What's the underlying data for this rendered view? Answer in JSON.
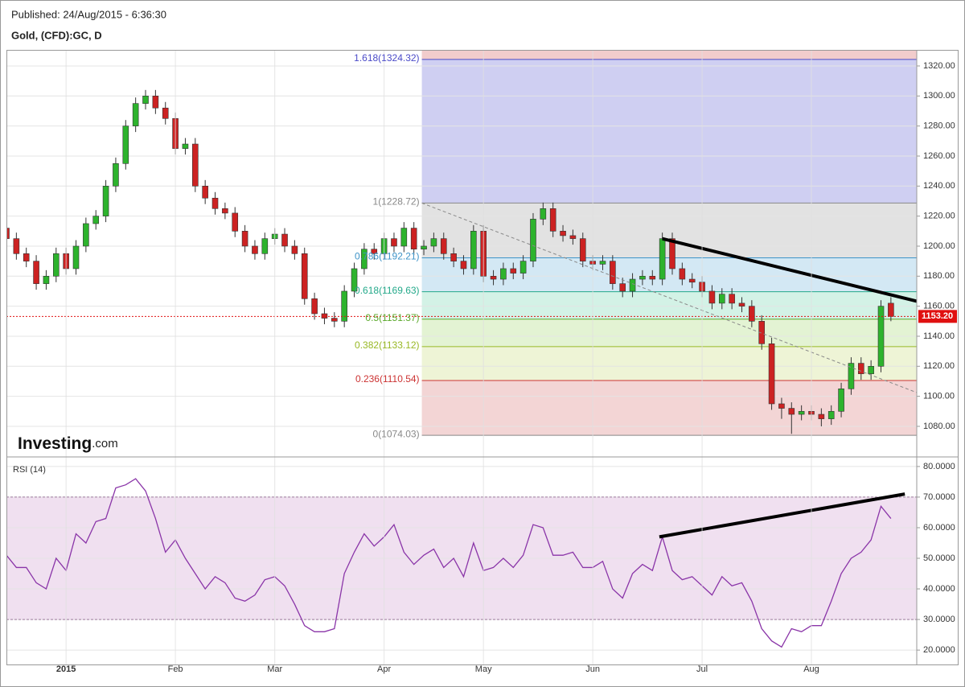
{
  "chart_data": [
    {
      "type": "candlestick",
      "subtitle": "Published: 24/Aug/2015 - 6:36:30",
      "title": "Gold, (CFD):GC, D",
      "brand": "Investing",
      "brand_suffix": ".com",
      "categories": [
        null,
        null,
        null,
        null,
        null,
        null,
        "2015",
        null,
        null,
        null,
        null,
        null,
        null,
        null,
        null,
        null,
        null,
        "Feb",
        null,
        null,
        null,
        null,
        null,
        null,
        null,
        null,
        null,
        "Mar",
        null,
        null,
        null,
        null,
        null,
        null,
        null,
        null,
        null,
        null,
        "Apr",
        null,
        null,
        null,
        null,
        null,
        null,
        null,
        null,
        null,
        "May",
        null,
        null,
        null,
        null,
        null,
        null,
        null,
        null,
        null,
        null,
        "Jun",
        null,
        null,
        null,
        null,
        null,
        null,
        null,
        null,
        null,
        null,
        "Jul",
        null,
        null,
        null,
        null,
        null,
        null,
        null,
        null,
        null,
        null,
        "Aug",
        null,
        null,
        null,
        null,
        null,
        null,
        null,
        null
      ],
      "open": [
        1212,
        1205,
        1195,
        1190,
        1175,
        1180,
        1195,
        1185,
        1200,
        1215,
        1220,
        1240,
        1255,
        1280,
        1295,
        1300,
        1292,
        1285,
        1265,
        1268,
        1240,
        1232,
        1225,
        1222,
        1210,
        1200,
        1195,
        1205,
        1208,
        1200,
        1195,
        1165,
        1155,
        1152,
        1150,
        1170,
        1185,
        1198,
        1195,
        1205,
        1200,
        1212,
        1198,
        1200,
        1205,
        1195,
        1190,
        1185,
        1210,
        1180,
        1178,
        1185,
        1182,
        1190,
        1218,
        1225,
        1210,
        1207,
        1205,
        1190,
        1188,
        1190,
        1175,
        1170,
        1178,
        1180,
        1178,
        1205,
        1185,
        1178,
        1176,
        1170,
        1162,
        1168,
        1162,
        1160,
        1150,
        1135,
        1095,
        1092,
        1088,
        1090,
        1088,
        1085,
        1090,
        1105,
        1122,
        1115,
        1120,
        1162
      ],
      "high": [
        1216,
        1209,
        1199,
        1194,
        1184,
        1199,
        1199,
        1204,
        1219,
        1224,
        1244,
        1259,
        1284,
        1299,
        1304,
        1304,
        1296,
        1289,
        1272,
        1272,
        1244,
        1236,
        1229,
        1226,
        1214,
        1204,
        1209,
        1212,
        1212,
        1204,
        1199,
        1169,
        1159,
        1156,
        1174,
        1189,
        1202,
        1202,
        1209,
        1209,
        1216,
        1216,
        1204,
        1209,
        1209,
        1199,
        1194,
        1214,
        1214,
        1184,
        1189,
        1189,
        1194,
        1222,
        1229,
        1229,
        1214,
        1211,
        1209,
        1194,
        1194,
        1194,
        1179,
        1182,
        1184,
        1184,
        1209,
        1209,
        1189,
        1182,
        1180,
        1174,
        1172,
        1172,
        1166,
        1164,
        1154,
        1139,
        1099,
        1096,
        1094,
        1094,
        1092,
        1094,
        1109,
        1126,
        1126,
        1124,
        1164,
        1166
      ],
      "low": [
        1201,
        1191,
        1186,
        1171,
        1171,
        1176,
        1181,
        1181,
        1196,
        1211,
        1216,
        1236,
        1251,
        1276,
        1291,
        1288,
        1281,
        1261,
        1261,
        1236,
        1228,
        1221,
        1218,
        1206,
        1196,
        1191,
        1191,
        1201,
        1196,
        1191,
        1161,
        1151,
        1148,
        1146,
        1146,
        1166,
        1181,
        1191,
        1191,
        1196,
        1196,
        1194,
        1194,
        1196,
        1191,
        1186,
        1181,
        1181,
        1176,
        1174,
        1174,
        1178,
        1178,
        1186,
        1214,
        1206,
        1203,
        1201,
        1186,
        1184,
        1184,
        1171,
        1166,
        1166,
        1174,
        1174,
        1174,
        1181,
        1174,
        1172,
        1166,
        1158,
        1158,
        1158,
        1156,
        1146,
        1131,
        1091,
        1085,
        1075,
        1084,
        1084,
        1080,
        1081,
        1086,
        1101,
        1111,
        1111,
        1116,
        1150
      ],
      "close": [
        1205,
        1195,
        1190,
        1175,
        1180,
        1195,
        1185,
        1200,
        1215,
        1220,
        1240,
        1255,
        1280,
        1295,
        1300,
        1292,
        1285,
        1265,
        1268,
        1240,
        1232,
        1225,
        1222,
        1210,
        1200,
        1195,
        1205,
        1208,
        1200,
        1195,
        1165,
        1155,
        1152,
        1150,
        1170,
        1185,
        1198,
        1195,
        1205,
        1200,
        1212,
        1198,
        1200,
        1205,
        1195,
        1190,
        1185,
        1210,
        1180,
        1178,
        1185,
        1182,
        1190,
        1218,
        1225,
        1210,
        1207,
        1205,
        1190,
        1188,
        1190,
        1175,
        1170,
        1178,
        1180,
        1178,
        1205,
        1185,
        1178,
        1176,
        1170,
        1162,
        1168,
        1162,
        1160,
        1150,
        1135,
        1095,
        1092,
        1088,
        1090,
        1088,
        1085,
        1090,
        1105,
        1122,
        1115,
        1120,
        1160,
        1153.2
      ],
      "up_color": "#2db32d",
      "down_color": "#cc2222",
      "xlim": [
        0,
        91.6
      ],
      "ylim": [
        1060.7,
        1330.7
      ],
      "yticks": [
        {
          "value": 1080,
          "label": "1080.00"
        },
        {
          "value": 1100,
          "label": "1100.00"
        },
        {
          "value": 1120,
          "label": "1120.00"
        },
        {
          "value": 1140,
          "label": "1140.00"
        },
        {
          "value": 1160,
          "label": "1160.00"
        },
        {
          "value": 1180,
          "label": "1180.00"
        },
        {
          "value": 1200,
          "label": "1200.00"
        },
        {
          "value": 1220,
          "label": "1220.00"
        },
        {
          "value": 1240,
          "label": "1240.00"
        },
        {
          "value": 1260,
          "label": "1260.00"
        },
        {
          "value": 1280,
          "label": "1280.00"
        },
        {
          "value": 1300,
          "label": "1300.00"
        },
        {
          "value": 1320,
          "label": "1320.00"
        }
      ],
      "grid": true,
      "last_price": {
        "value": 1153.2,
        "label": "1153.20",
        "color": "#e01010"
      },
      "fib_start": 41.8,
      "fib_levels": [
        {
          "value": 1324.32,
          "label": "1.618(1324.32)",
          "color": "#4a4ac8",
          "zone": "#f2cccc"
        },
        {
          "value": 1228.72,
          "label": "1(1228.72)",
          "color": "#888888",
          "zone": "#cfcff2"
        },
        {
          "value": 1192.21,
          "label": "0.786(1192.21)",
          "color": "#3f94c8",
          "zone": "#e2e2e2"
        },
        {
          "value": 1169.63,
          "label": "0.618(1169.63)",
          "color": "#23a98a",
          "zone": "#d3e8f4"
        },
        {
          "value": 1151.37,
          "label": "0.5(1151.37)",
          "color": "#5aa82a",
          "zone": "#d3f2e6"
        },
        {
          "value": 1133.12,
          "label": "0.382(1133.12)",
          "color": "#98b824",
          "zone": "#e3f3d3"
        },
        {
          "value": 1110.54,
          "label": "0.236(1110.54)",
          "color": "#cc3333",
          "zone": "#eef4d6"
        },
        {
          "value": 1074.03,
          "label": "0(1074.03)",
          "color": "#888888",
          "zone": "#f3d5d5"
        }
      ],
      "trendlines": [
        {
          "x": [
            66,
            92.4
          ],
          "y": [
            1205,
            1162
          ],
          "style": "solid",
          "color": "#000000"
        },
        {
          "x": [
            41.8,
            91.6
          ],
          "y": [
            1228.7,
            1102.5
          ],
          "style": "dashed",
          "color": "#888888"
        }
      ]
    },
    {
      "type": "line",
      "title": "RSI (14)",
      "values": [
        51,
        47,
        47,
        42,
        40,
        50,
        46,
        58,
        55,
        62,
        63,
        73,
        74,
        76,
        72,
        63,
        52,
        56,
        50,
        45,
        40,
        44,
        42,
        37,
        36,
        38,
        43,
        44,
        41,
        35,
        28,
        26,
        26,
        27,
        45,
        52,
        58,
        54,
        57,
        61,
        52,
        48,
        51,
        53,
        47,
        50,
        44,
        55,
        46,
        47,
        50,
        47,
        51,
        61,
        60,
        51,
        51,
        52,
        47,
        47,
        49,
        40,
        37,
        45,
        48,
        46,
        57,
        46,
        43,
        44,
        41,
        38,
        44,
        41,
        42,
        36,
        27,
        23,
        21,
        27,
        26,
        28,
        28,
        36,
        45,
        50,
        52,
        56,
        67,
        63
      ],
      "color": "#8a35a8",
      "xlim": [
        0,
        91.6
      ],
      "ylim": [
        15.3,
        82.6
      ],
      "yticks": [
        {
          "value": 20,
          "label": "20.0000"
        },
        {
          "value": 30,
          "label": "30.0000"
        },
        {
          "value": 40,
          "label": "40.0000"
        },
        {
          "value": 50,
          "label": "50.0000"
        },
        {
          "value": 60,
          "label": "60.0000"
        },
        {
          "value": 70,
          "label": "70.0000"
        },
        {
          "value": 80,
          "label": "80.0000"
        }
      ],
      "grid": true,
      "band": [
        30,
        70
      ],
      "band_color": "#f0e0f0",
      "trendlines": [
        {
          "x": [
            65.7,
            90.4
          ],
          "y": [
            57,
            71
          ],
          "style": "solid",
          "color": "#000000"
        }
      ]
    }
  ]
}
